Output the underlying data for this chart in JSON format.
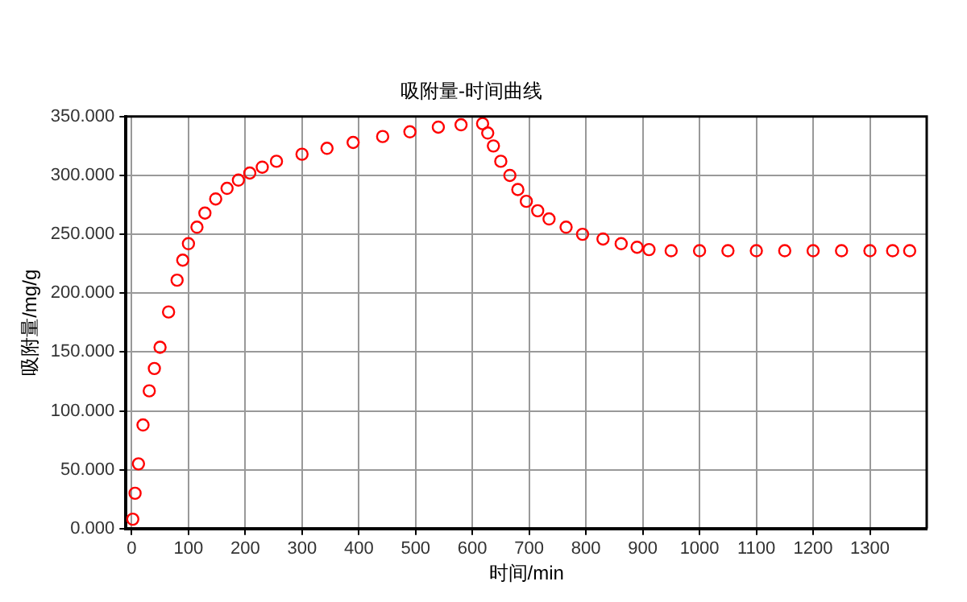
{
  "chart_data": {
    "type": "scatter",
    "title": "吸附量-时间曲线",
    "xlabel": "时间/min",
    "ylabel": "吸附量/mg/g",
    "marker": "circle",
    "grid": true,
    "legend": false,
    "xlim": [
      -10,
      1400
    ],
    "xticks": [
      0,
      100,
      200,
      300,
      400,
      500,
      600,
      700,
      800,
      900,
      1000,
      1100,
      1200,
      1300
    ],
    "ylim": [
      0,
      350
    ],
    "yticks": [
      {
        "value": 0,
        "label": "0.000"
      },
      {
        "value": 50,
        "label": "50.000"
      },
      {
        "value": 100,
        "label": "100.000"
      },
      {
        "value": 150,
        "label": "150.000"
      },
      {
        "value": 200,
        "label": "200.000"
      },
      {
        "value": 250,
        "label": "250.000"
      },
      {
        "value": 300,
        "label": "300.000"
      },
      {
        "value": 350,
        "label": "350.000"
      }
    ],
    "series": [
      {
        "color": "#ff0000",
        "x": [
          2,
          6,
          12,
          20,
          31,
          40,
          50,
          65,
          80,
          90,
          100,
          115,
          129,
          148,
          168,
          188,
          208,
          230,
          255,
          300,
          344,
          390,
          442,
          490,
          540,
          580,
          618,
          627,
          637,
          650,
          666,
          680,
          695,
          715,
          735,
          765,
          794,
          830,
          862,
          890,
          911,
          950,
          1000,
          1050,
          1100,
          1150,
          1200,
          1250,
          1300,
          1340,
          1370
        ],
        "values": [
          8,
          30,
          55,
          88,
          117,
          136,
          154,
          184,
          211,
          228,
          242,
          256,
          268,
          280,
          289,
          296,
          302,
          307,
          312,
          318,
          323,
          328,
          333,
          337,
          341,
          343,
          344,
          336,
          325,
          312,
          300,
          288,
          278,
          270,
          263,
          256,
          250,
          246,
          242,
          239,
          237,
          236,
          236,
          236,
          236,
          236,
          236,
          236,
          236,
          236,
          236
        ]
      }
    ]
  }
}
